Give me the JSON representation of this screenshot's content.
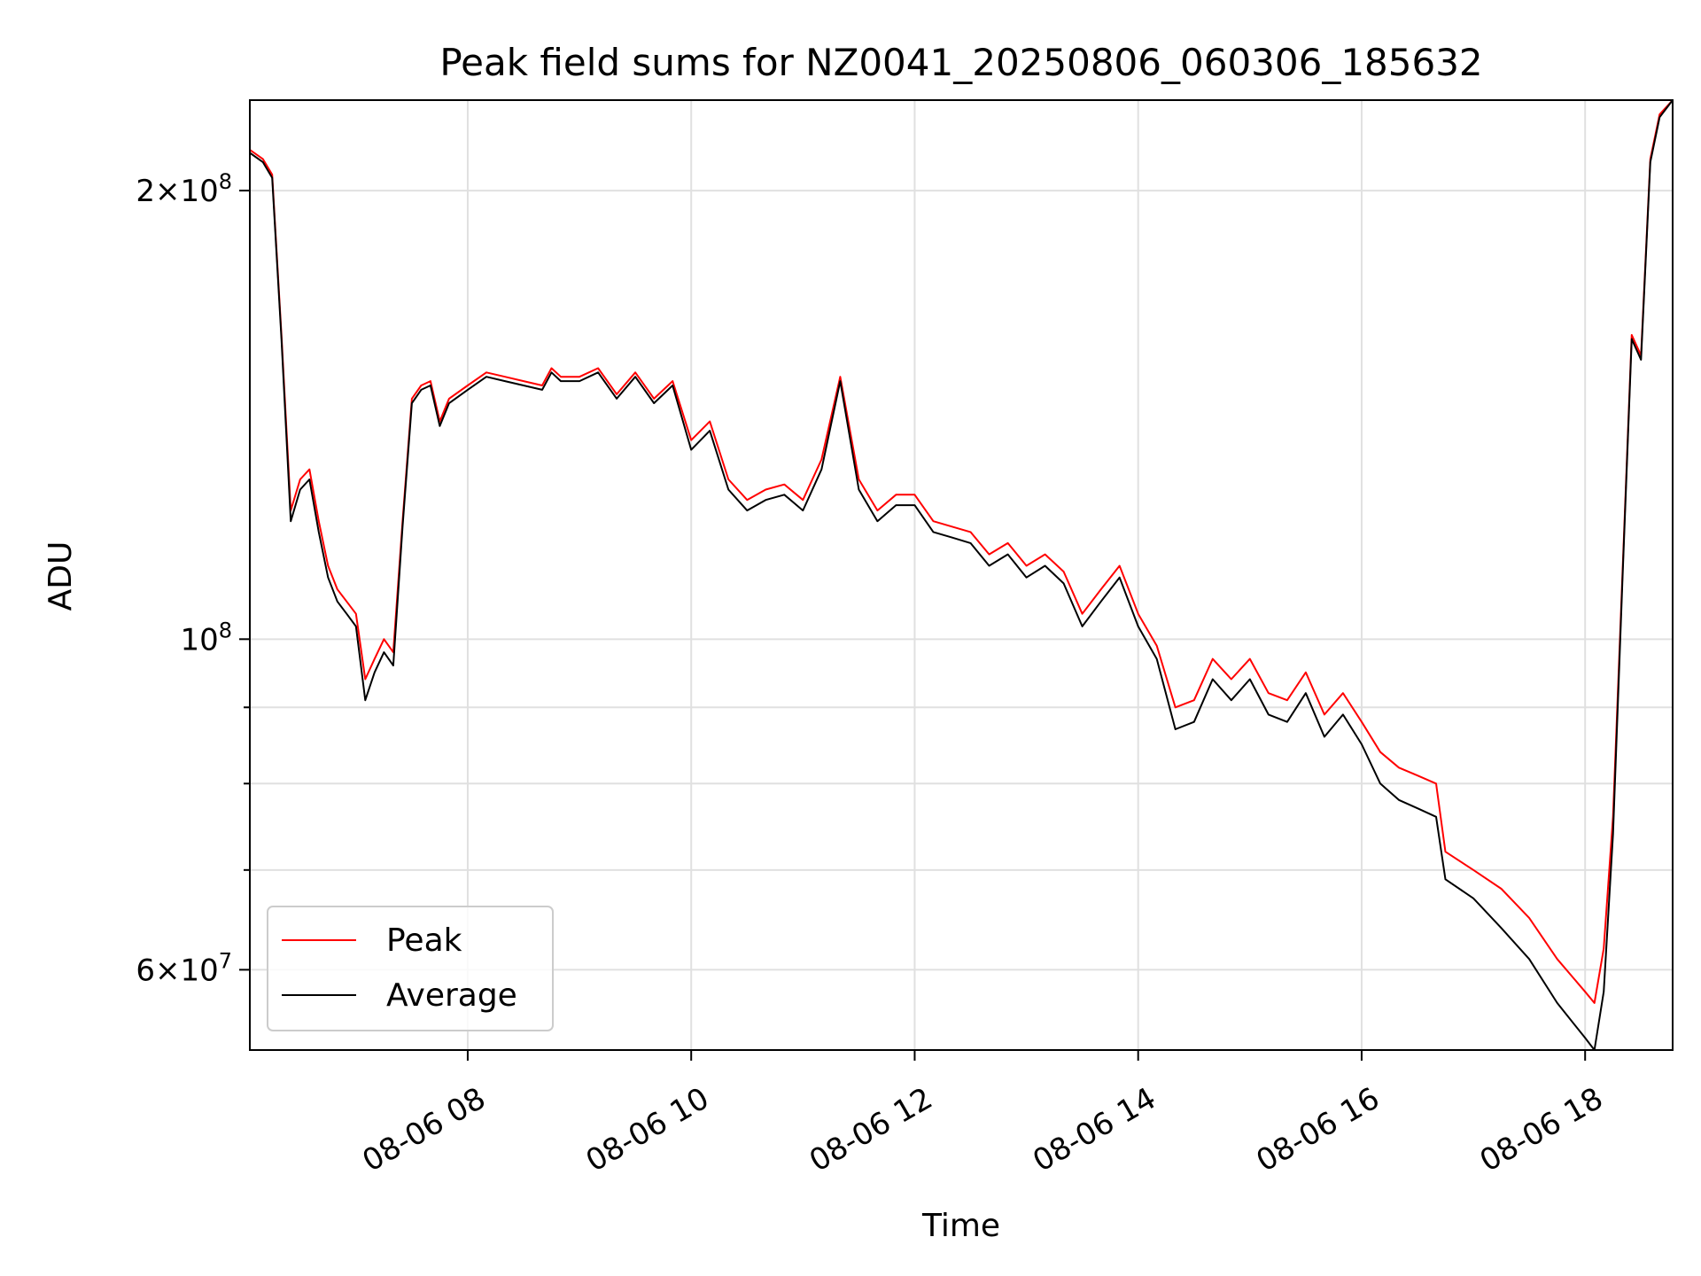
{
  "chart_data": {
    "type": "line",
    "title": "Peak field sums for NZ0041_20250806_060306_185632",
    "xlabel": "Time",
    "ylabel": "ADU",
    "yscale": "log",
    "ylim": [
      53000000,
      230000000
    ],
    "xlim": [
      "2025-08-06 06:03",
      "2025-08-06 18:47"
    ],
    "x_ticks": [
      {
        "at": "2025-08-06 08:00",
        "label": "08-06 08"
      },
      {
        "at": "2025-08-06 10:00",
        "label": "08-06 10"
      },
      {
        "at": "2025-08-06 12:00",
        "label": "08-06 12"
      },
      {
        "at": "2025-08-06 14:00",
        "label": "08-06 14"
      },
      {
        "at": "2025-08-06 16:00",
        "label": "08-06 16"
      },
      {
        "at": "2025-08-06 18:00",
        "label": "08-06 18"
      }
    ],
    "y_major_ticks": [
      {
        "value": 200000000,
        "mantissa": "2",
        "exp": "8"
      },
      {
        "value": 100000000,
        "mantissa": "",
        "exp": "8"
      },
      {
        "value": 60000000,
        "mantissa": "6",
        "exp": "7"
      }
    ],
    "y_minor_ticks": [
      70000000,
      80000000,
      90000000
    ],
    "grid": true,
    "legend_position": "bottom-left",
    "series": [
      {
        "name": "Peak",
        "color": "#ff0000",
        "x": [
          "2025-08-06 06:03",
          "2025-08-06 06:10",
          "2025-08-06 06:15",
          "2025-08-06 06:20",
          "2025-08-06 06:25",
          "2025-08-06 06:30",
          "2025-08-06 06:35",
          "2025-08-06 06:40",
          "2025-08-06 06:45",
          "2025-08-06 06:50",
          "2025-08-06 06:55",
          "2025-08-06 07:00",
          "2025-08-06 07:05",
          "2025-08-06 07:10",
          "2025-08-06 07:15",
          "2025-08-06 07:20",
          "2025-08-06 07:25",
          "2025-08-06 07:30",
          "2025-08-06 07:35",
          "2025-08-06 07:40",
          "2025-08-06 07:45",
          "2025-08-06 07:50",
          "2025-08-06 08:00",
          "2025-08-06 08:10",
          "2025-08-06 08:20",
          "2025-08-06 08:30",
          "2025-08-06 08:40",
          "2025-08-06 08:45",
          "2025-08-06 08:50",
          "2025-08-06 09:00",
          "2025-08-06 09:10",
          "2025-08-06 09:20",
          "2025-08-06 09:30",
          "2025-08-06 09:40",
          "2025-08-06 09:50",
          "2025-08-06 10:00",
          "2025-08-06 10:10",
          "2025-08-06 10:20",
          "2025-08-06 10:30",
          "2025-08-06 10:40",
          "2025-08-06 10:50",
          "2025-08-06 11:00",
          "2025-08-06 11:10",
          "2025-08-06 11:20",
          "2025-08-06 11:30",
          "2025-08-06 11:40",
          "2025-08-06 11:50",
          "2025-08-06 12:00",
          "2025-08-06 12:10",
          "2025-08-06 12:20",
          "2025-08-06 12:30",
          "2025-08-06 12:40",
          "2025-08-06 12:50",
          "2025-08-06 13:00",
          "2025-08-06 13:10",
          "2025-08-06 13:20",
          "2025-08-06 13:30",
          "2025-08-06 13:40",
          "2025-08-06 13:50",
          "2025-08-06 14:00",
          "2025-08-06 14:10",
          "2025-08-06 14:20",
          "2025-08-06 14:30",
          "2025-08-06 14:40",
          "2025-08-06 14:50",
          "2025-08-06 15:00",
          "2025-08-06 15:10",
          "2025-08-06 15:20",
          "2025-08-06 15:30",
          "2025-08-06 15:40",
          "2025-08-06 15:50",
          "2025-08-06 16:00",
          "2025-08-06 16:10",
          "2025-08-06 16:20",
          "2025-08-06 16:30",
          "2025-08-06 16:40",
          "2025-08-06 16:45",
          "2025-08-06 17:00",
          "2025-08-06 17:15",
          "2025-08-06 17:30",
          "2025-08-06 17:45",
          "2025-08-06 18:00",
          "2025-08-06 18:05",
          "2025-08-06 18:10",
          "2025-08-06 18:15",
          "2025-08-06 18:20",
          "2025-08-06 18:25",
          "2025-08-06 18:30",
          "2025-08-06 18:35",
          "2025-08-06 18:40",
          "2025-08-06 18:47"
        ],
        "y": [
          213000000,
          210000000,
          205000000,
          160000000,
          122000000,
          128000000,
          130000000,
          120000000,
          112000000,
          108000000,
          106000000,
          104000000,
          94000000,
          97000000,
          100000000,
          98000000,
          120000000,
          145000000,
          148000000,
          149000000,
          140000000,
          145000000,
          148000000,
          151000000,
          150000000,
          149000000,
          148000000,
          152000000,
          150000000,
          150000000,
          152000000,
          146000000,
          151000000,
          145000000,
          149000000,
          136000000,
          140000000,
          128000000,
          124000000,
          126000000,
          127000000,
          124000000,
          132000000,
          150000000,
          128000000,
          122000000,
          125000000,
          125000000,
          120000000,
          119000000,
          118000000,
          114000000,
          116000000,
          112000000,
          114000000,
          111000000,
          104000000,
          108000000,
          112000000,
          104000000,
          99000000,
          90000000,
          91000000,
          97000000,
          94000000,
          97000000,
          92000000,
          91000000,
          95000000,
          89000000,
          92000000,
          88000000,
          84000000,
          82000000,
          81000000,
          80000000,
          72000000,
          70000000,
          68000000,
          65000000,
          61000000,
          58000000,
          57000000,
          62000000,
          76000000,
          110000000,
          160000000,
          155000000,
          210000000,
          225000000,
          230000000
        ]
      },
      {
        "name": "Average",
        "color": "#000000",
        "x": [
          "2025-08-06 06:03",
          "2025-08-06 06:10",
          "2025-08-06 06:15",
          "2025-08-06 06:20",
          "2025-08-06 06:25",
          "2025-08-06 06:30",
          "2025-08-06 06:35",
          "2025-08-06 06:40",
          "2025-08-06 06:45",
          "2025-08-06 06:50",
          "2025-08-06 06:55",
          "2025-08-06 07:00",
          "2025-08-06 07:05",
          "2025-08-06 07:10",
          "2025-08-06 07:15",
          "2025-08-06 07:20",
          "2025-08-06 07:25",
          "2025-08-06 07:30",
          "2025-08-06 07:35",
          "2025-08-06 07:40",
          "2025-08-06 07:45",
          "2025-08-06 07:50",
          "2025-08-06 08:00",
          "2025-08-06 08:10",
          "2025-08-06 08:20",
          "2025-08-06 08:30",
          "2025-08-06 08:40",
          "2025-08-06 08:45",
          "2025-08-06 08:50",
          "2025-08-06 09:00",
          "2025-08-06 09:10",
          "2025-08-06 09:20",
          "2025-08-06 09:30",
          "2025-08-06 09:40",
          "2025-08-06 09:50",
          "2025-08-06 10:00",
          "2025-08-06 10:10",
          "2025-08-06 10:20",
          "2025-08-06 10:30",
          "2025-08-06 10:40",
          "2025-08-06 10:50",
          "2025-08-06 11:00",
          "2025-08-06 11:10",
          "2025-08-06 11:20",
          "2025-08-06 11:30",
          "2025-08-06 11:40",
          "2025-08-06 11:50",
          "2025-08-06 12:00",
          "2025-08-06 12:10",
          "2025-08-06 12:20",
          "2025-08-06 12:30",
          "2025-08-06 12:40",
          "2025-08-06 12:50",
          "2025-08-06 13:00",
          "2025-08-06 13:10",
          "2025-08-06 13:20",
          "2025-08-06 13:30",
          "2025-08-06 13:40",
          "2025-08-06 13:50",
          "2025-08-06 14:00",
          "2025-08-06 14:10",
          "2025-08-06 14:20",
          "2025-08-06 14:30",
          "2025-08-06 14:40",
          "2025-08-06 14:50",
          "2025-08-06 15:00",
          "2025-08-06 15:10",
          "2025-08-06 15:20",
          "2025-08-06 15:30",
          "2025-08-06 15:40",
          "2025-08-06 15:50",
          "2025-08-06 16:00",
          "2025-08-06 16:10",
          "2025-08-06 16:20",
          "2025-08-06 16:30",
          "2025-08-06 16:40",
          "2025-08-06 16:45",
          "2025-08-06 17:00",
          "2025-08-06 17:15",
          "2025-08-06 17:30",
          "2025-08-06 17:45",
          "2025-08-06 18:00",
          "2025-08-06 18:05",
          "2025-08-06 18:10",
          "2025-08-06 18:15",
          "2025-08-06 18:20",
          "2025-08-06 18:25",
          "2025-08-06 18:30",
          "2025-08-06 18:35",
          "2025-08-06 18:40",
          "2025-08-06 18:47"
        ],
        "y": [
          212000000,
          209000000,
          204000000,
          159000000,
          120000000,
          126000000,
          128000000,
          118000000,
          110000000,
          106000000,
          104000000,
          102000000,
          91000000,
          95000000,
          98000000,
          96000000,
          119000000,
          144000000,
          147000000,
          148000000,
          139000000,
          144000000,
          147000000,
          150000000,
          149000000,
          148000000,
          147000000,
          151000000,
          149000000,
          149000000,
          151000000,
          145000000,
          150000000,
          144000000,
          148000000,
          134000000,
          138000000,
          126000000,
          122000000,
          124000000,
          125000000,
          122000000,
          130000000,
          149000000,
          126000000,
          120000000,
          123000000,
          123000000,
          118000000,
          117000000,
          116000000,
          112000000,
          114000000,
          110000000,
          112000000,
          109000000,
          102000000,
          106000000,
          110000000,
          102000000,
          97000000,
          87000000,
          88000000,
          94000000,
          91000000,
          94000000,
          89000000,
          88000000,
          92000000,
          86000000,
          89000000,
          85000000,
          80000000,
          78000000,
          77000000,
          76000000,
          69000000,
          67000000,
          64000000,
          61000000,
          57000000,
          54000000,
          53000000,
          58000000,
          74000000,
          109000000,
          159000000,
          154000000,
          209000000,
          224000000,
          230000000
        ]
      }
    ]
  }
}
